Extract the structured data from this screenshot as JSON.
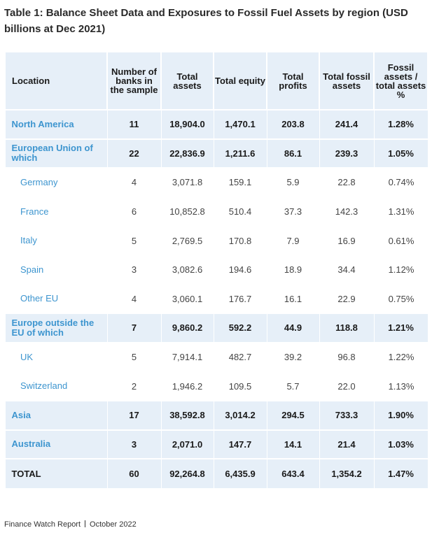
{
  "title": "Table 1: Balance Sheet Data and Exposures to Fossil Fuel Assets by region (USD billions at Dec 2021)",
  "headers": [
    "Location",
    "Number of banks in the sample",
    "Total assets",
    "Total equity",
    "Total profits",
    "Total fossil assets",
    "Fossil assets / total assets %"
  ],
  "rows": [
    {
      "kind": "region",
      "cells": [
        "North America",
        "11",
        "18,904.0",
        "1,470.1",
        "203.8",
        "241.4",
        "1.28%"
      ]
    },
    {
      "kind": "region",
      "cells": [
        "European Union of which",
        "22",
        "22,836.9",
        "1,211.6",
        "86.1",
        "239.3",
        "1.05%"
      ]
    },
    {
      "kind": "sub",
      "cells": [
        "Germany",
        "4",
        "3,071.8",
        "159.1",
        "5.9",
        "22.8",
        "0.74%"
      ]
    },
    {
      "kind": "sub",
      "cells": [
        "France",
        "6",
        "10,852.8",
        "510.4",
        "37.3",
        "142.3",
        "1.31%"
      ]
    },
    {
      "kind": "sub",
      "cells": [
        "Italy",
        "5",
        "2,769.5",
        "170.8",
        "7.9",
        "16.9",
        "0.61%"
      ]
    },
    {
      "kind": "sub",
      "cells": [
        "Spain",
        "3",
        "3,082.6",
        "194.6",
        "18.9",
        "34.4",
        "1.12%"
      ]
    },
    {
      "kind": "sub",
      "cells": [
        "Other EU",
        "4",
        "3,060.1",
        "176.7",
        "16.1",
        "22.9",
        "0.75%"
      ]
    },
    {
      "kind": "region",
      "cells": [
        "Europe outside the EU of which",
        "7",
        "9,860.2",
        "592.2",
        "44.9",
        "118.8",
        "1.21%"
      ]
    },
    {
      "kind": "sub",
      "cells": [
        "UK",
        "5",
        "7,914.1",
        "482.7",
        "39.2",
        "96.8",
        "1.22%"
      ]
    },
    {
      "kind": "sub",
      "cells": [
        "Switzerland",
        "2",
        "1,946.2",
        "109.5",
        "5.7",
        "22.0",
        "1.13%"
      ]
    },
    {
      "kind": "region",
      "cells": [
        "Asia",
        "17",
        "38,592.8",
        "3,014.2",
        "294.5",
        "733.3",
        "1.90%"
      ]
    },
    {
      "kind": "region",
      "cells": [
        "Australia",
        "3",
        "2,071.0",
        "147.7",
        "14.1",
        "21.4",
        "1.03%"
      ]
    },
    {
      "kind": "total",
      "cells": [
        "TOTAL",
        "60",
        "92,264.8",
        "6,435.9",
        "643.4",
        "1,354.2",
        "1.47%"
      ]
    }
  ],
  "footer": {
    "publication": "Finance Watch Report",
    "date": "October 2022"
  },
  "colors": {
    "accent_blue": "#3d95cf",
    "header_bg": "#e6eff8",
    "grid_line": "#cfe0f1"
  }
}
